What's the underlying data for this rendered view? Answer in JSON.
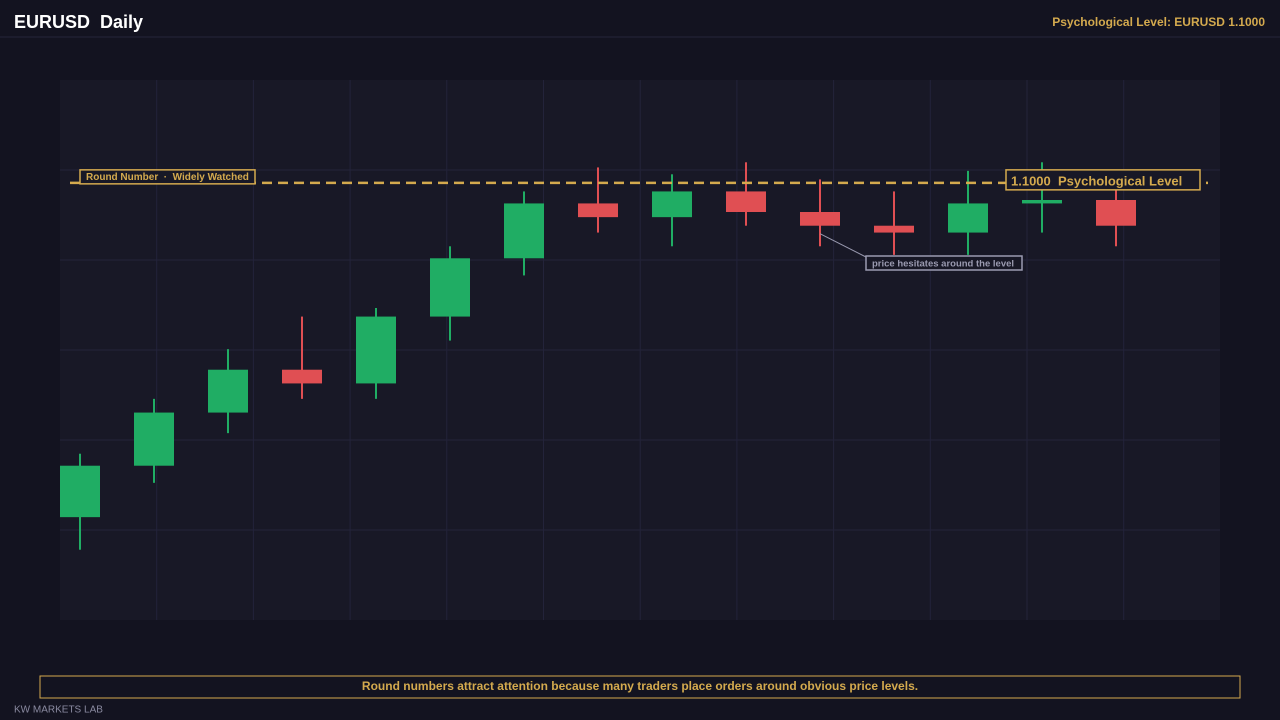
{
  "chart_data": {
    "type": "candlestick",
    "title": "EURUSD  Daily",
    "subtitle": "Psychological Level: EURUSD 1.1000",
    "ylim": [
      1.0745,
      1.106
    ],
    "up_color": "#20ad64",
    "down_color": "#e04f53",
    "level": {
      "value": 1.1,
      "label": "1.1000  Psychological Level",
      "tag": "Round Number  ·  Widely Watched",
      "color": "#d4aa4e"
    },
    "open": [
      1.0805,
      1.0835,
      1.0866,
      1.0891,
      1.0883,
      1.0922,
      1.0956,
      1.0988,
      1.098,
      1.0995,
      1.0983,
      1.0975,
      1.0971,
      1.0988,
      1.099
    ],
    "high": [
      1.0842,
      1.0874,
      1.0903,
      1.0922,
      1.0927,
      1.0963,
      1.0995,
      1.1009,
      1.1005,
      1.1012,
      1.1002,
      1.0995,
      1.1007,
      1.1012,
      1.0997
    ],
    "low": [
      1.0786,
      1.0825,
      1.0854,
      1.0874,
      1.0874,
      1.0908,
      1.0946,
      1.0971,
      1.0963,
      1.0975,
      1.0963,
      1.0958,
      1.0958,
      1.0971,
      1.0963
    ],
    "close": [
      1.0835,
      1.0866,
      1.0891,
      1.0883,
      1.0922,
      1.0956,
      1.0988,
      1.098,
      1.0995,
      1.0983,
      1.0975,
      1.0971,
      1.0988,
      1.099,
      1.0975
    ],
    "annotation": {
      "text": "price hesitates around the level",
      "index": 10
    },
    "note": "Round numbers attract attention because many traders place orders around obvious price levels.",
    "brand": "KW MARKETS LAB"
  }
}
